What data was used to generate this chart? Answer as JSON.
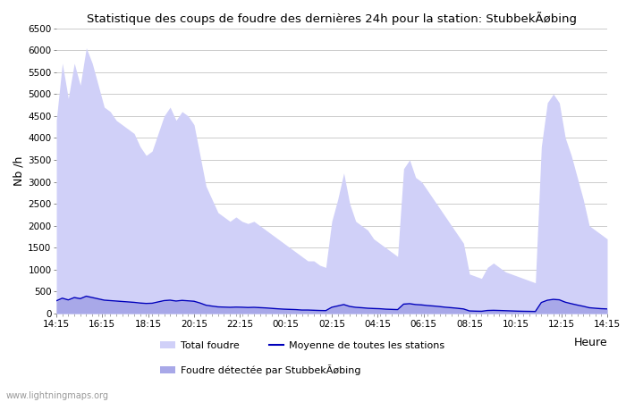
{
  "title": "Statistique des coups de foudre des dernières 24h pour la station: StubbekÃøbing",
  "ylabel": "Nb /h",
  "xlabel": "Heure",
  "xlabels": [
    "14:15",
    "16:15",
    "18:15",
    "20:15",
    "22:15",
    "00:15",
    "02:15",
    "04:15",
    "06:15",
    "08:15",
    "10:15",
    "12:15",
    "14:15"
  ],
  "ylim": [
    0,
    6500
  ],
  "yticks": [
    0,
    500,
    1000,
    1500,
    2000,
    2500,
    3000,
    3500,
    4000,
    4500,
    5000,
    5500,
    6000,
    6500
  ],
  "background_color": "#ffffff",
  "grid_color": "#cccccc",
  "fill_total_color": "#d0d0f8",
  "fill_local_color": "#a8a8e8",
  "line_avg_color": "#0000bb",
  "watermark": "www.lightningmaps.org",
  "legend_total": "Total foudre",
  "legend_avg": "Moyenne de toutes les stations",
  "legend_local": "Foudre détectée par StubbekÃøbing",
  "total_foudre": [
    4400,
    5700,
    4900,
    5700,
    5200,
    6050,
    5700,
    5200,
    4700,
    4600,
    4400,
    4300,
    4200,
    4100,
    3800,
    3600,
    3700,
    4100,
    4500,
    4700,
    4400,
    4600,
    4500,
    4300,
    3600,
    2900,
    2600,
    2300,
    2200,
    2100,
    2200,
    2100,
    2050,
    2100,
    2000,
    1900,
    1800,
    1700,
    1600,
    1500,
    1400,
    1300,
    1200,
    1200,
    1100,
    1050,
    2100,
    2600,
    3200,
    2500,
    2100,
    2000,
    1900,
    1700,
    1600,
    1500,
    1400,
    1300,
    3300,
    3500,
    3100,
    3000,
    2800,
    2600,
    2400,
    2200,
    2000,
    1800,
    1600,
    900,
    850,
    800,
    1050,
    1150,
    1050,
    950,
    900,
    850,
    800,
    750,
    700,
    3800,
    4800,
    5000,
    4800,
    4000,
    3600,
    3100,
    2600,
    2000,
    1900,
    1800,
    1700
  ],
  "local_foudre": [
    280,
    340,
    300,
    360,
    340,
    390,
    360,
    330,
    300,
    290,
    280,
    270,
    260,
    250,
    235,
    225,
    230,
    260,
    290,
    300,
    280,
    295,
    285,
    275,
    235,
    185,
    165,
    148,
    143,
    138,
    143,
    140,
    135,
    138,
    132,
    125,
    115,
    105,
    97,
    92,
    87,
    78,
    78,
    73,
    68,
    65,
    140,
    170,
    200,
    158,
    138,
    130,
    118,
    112,
    107,
    98,
    92,
    87,
    210,
    220,
    200,
    192,
    178,
    168,
    155,
    140,
    130,
    117,
    102,
    58,
    53,
    50,
    68,
    72,
    68,
    63,
    58,
    53,
    50,
    48,
    45,
    248,
    298,
    318,
    308,
    254,
    220,
    190,
    162,
    130,
    118,
    108,
    102
  ],
  "avg_line": [
    290,
    350,
    310,
    365,
    340,
    395,
    365,
    335,
    305,
    295,
    285,
    275,
    265,
    255,
    240,
    230,
    235,
    265,
    295,
    305,
    285,
    300,
    290,
    280,
    240,
    190,
    170,
    152,
    147,
    142,
    147,
    144,
    138,
    142,
    135,
    128,
    118,
    108,
    100,
    95,
    90,
    80,
    80,
    75,
    70,
    67,
    143,
    174,
    205,
    162,
    142,
    133,
    121,
    115,
    110,
    100,
    95,
    90,
    215,
    225,
    205,
    197,
    182,
    172,
    159,
    144,
    133,
    120,
    105,
    60,
    55,
    52,
    70,
    74,
    70,
    65,
    60,
    55,
    52,
    50,
    47,
    252,
    303,
    323,
    313,
    259,
    225,
    194,
    166,
    133,
    121,
    111,
    105
  ]
}
